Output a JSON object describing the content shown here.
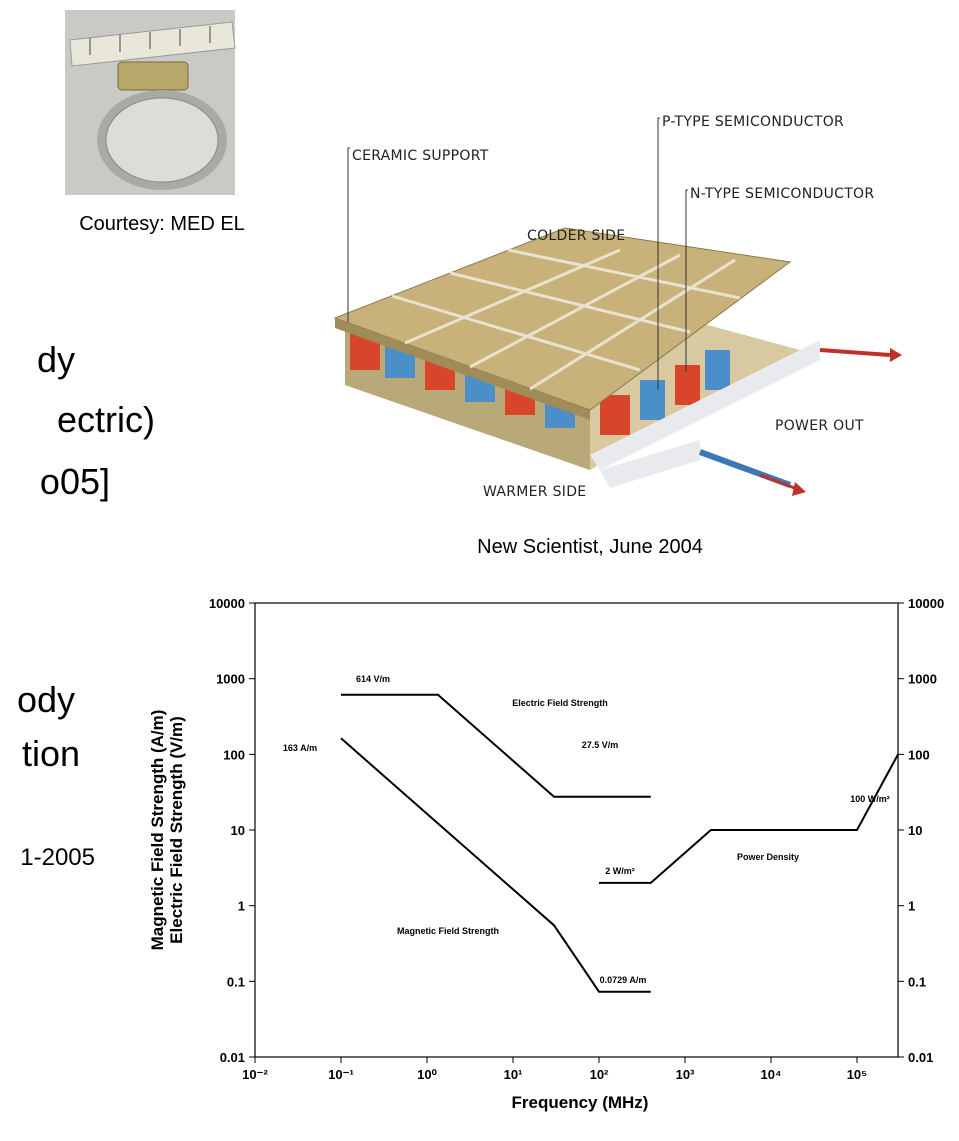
{
  "slide": {
    "captions": [
      "Courtesy: MED EL",
      "New Scientist, June 2004"
    ],
    "text_fragments": [
      "dy",
      "ectric)",
      "o05]",
      "ody",
      "tion",
      "1-2005"
    ],
    "diagram_labels": [
      "CERAMIC SUPPORT",
      "P-TYPE SEMICONDUCTOR",
      "N-TYPE SEMICONDUCTOR",
      "COLDER SIDE",
      "POWER OUT",
      "WARMER SIDE"
    ]
  },
  "chart_data": {
    "type": "line",
    "x_label": "Frequency (MHz)",
    "y_label": [
      "Magnetic Field Strength (A/m)",
      "Electric Field Strength (V/m)"
    ],
    "xscale": "log",
    "yscale": "log",
    "xlim": [
      0.01,
      300000
    ],
    "xticks": [
      {
        "value": 0.01,
        "label": "10⁻²"
      },
      {
        "value": 0.1,
        "label": "10⁻¹"
      },
      {
        "value": 1,
        "label": "10⁰"
      },
      {
        "value": 10,
        "label": "10¹"
      },
      {
        "value": 100,
        "label": "10²"
      },
      {
        "value": 1000,
        "label": "10³"
      },
      {
        "value": 10000,
        "label": "10⁴"
      },
      {
        "value": 100000,
        "label": "10⁵"
      }
    ],
    "ylim": [
      0.01,
      10000
    ],
    "yticks": [
      0.01,
      0.1,
      1,
      10,
      100,
      1000,
      10000
    ],
    "y2lim": [
      0.01,
      10000
    ],
    "y2ticks": [
      0.01,
      0.1,
      1,
      10,
      100,
      1000,
      10000
    ],
    "series": [
      {
        "name": "Electric Field Strength",
        "color": "#000000",
        "x": [
          0.1,
          1.34,
          30,
          400
        ],
        "values": [
          614,
          614,
          27.5,
          27.5
        ]
      },
      {
        "name": "Magnetic Field Strength",
        "color": "#000000",
        "x": [
          0.1,
          30,
          100,
          400
        ],
        "values": [
          163,
          0.55,
          0.0729,
          0.0729
        ]
      },
      {
        "name": "Power Density",
        "color": "#000000",
        "axis": "y2",
        "x": [
          100,
          400,
          2000,
          100000,
          300000
        ],
        "values": [
          2,
          2,
          10,
          10,
          100
        ]
      }
    ],
    "annotations": [
      "614 V/m",
      "27.5 V/m",
      "163 A/m",
      "0.0729 A/m",
      "2 W/m²",
      "100 W/m²"
    ]
  }
}
